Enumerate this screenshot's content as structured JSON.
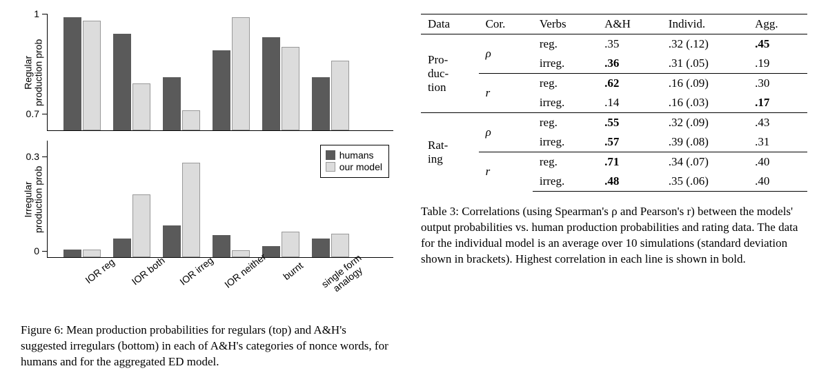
{
  "figure": {
    "top": {
      "ylabel": "Regular\nproduction prob",
      "ylim": [
        0.65,
        1.0
      ],
      "ticks": [
        0.7,
        1.0
      ],
      "bars": [
        {
          "humans": 0.99,
          "model": 0.98
        },
        {
          "humans": 0.94,
          "model": 0.79
        },
        {
          "humans": 0.81,
          "model": 0.71
        },
        {
          "humans": 0.89,
          "model": 0.99
        },
        {
          "humans": 0.93,
          "model": 0.9
        },
        {
          "humans": 0.81,
          "model": 0.86
        }
      ]
    },
    "bottom": {
      "ylabel": "Irregular\nproduction prob",
      "ylim": [
        -0.02,
        0.35
      ],
      "ticks": [
        0,
        0.3
      ],
      "bars": [
        {
          "humans": 0.005,
          "model": 0.004
        },
        {
          "humans": 0.04,
          "model": 0.18
        },
        {
          "humans": 0.08,
          "model": 0.28
        },
        {
          "humans": 0.05,
          "model": 0.003
        },
        {
          "humans": 0.015,
          "model": 0.06
        },
        {
          "humans": 0.04,
          "model": 0.055
        }
      ]
    },
    "categories": [
      "IOR reg",
      "IOR both",
      "IOR irreg",
      "IOR neither",
      "burnt",
      "single form\nanalogy"
    ],
    "legend": {
      "humans": "humans",
      "model": "our model"
    },
    "colors": {
      "humans": "#5a5a5a",
      "model": "#dcdcdc"
    },
    "caption": "Figure 6: Mean production probabilities for regulars (top) and A&H's suggested irregulars (bottom) in each of A&H's categories of nonce words, for humans and for the aggregated ED model."
  },
  "table": {
    "headers": [
      "Data",
      "Cor.",
      "Verbs",
      "A&H",
      "Individ.",
      "Agg."
    ],
    "rows": [
      {
        "data": "Pro-\nduc-\ntion",
        "cor": "ρ",
        "verbs": "reg.",
        "ah": ".35",
        "ind": ".32 (.12)",
        "agg": ".45",
        "bold": "agg"
      },
      {
        "data": "",
        "cor": "",
        "verbs": "irreg.",
        "ah": ".36",
        "ind": ".31 (.05)",
        "agg": ".19",
        "bold": "ah"
      },
      {
        "data": "",
        "cor": "r",
        "verbs": "reg.",
        "ah": ".62",
        "ind": ".16 (.09)",
        "agg": ".30",
        "bold": "ah"
      },
      {
        "data": "",
        "cor": "",
        "verbs": "irreg.",
        "ah": ".14",
        "ind": ".16 (.03)",
        "agg": ".17",
        "bold": "agg"
      },
      {
        "data": "Rat-\ning",
        "cor": "ρ",
        "verbs": "reg.",
        "ah": ".55",
        "ind": ".32 (.09)",
        "agg": ".43",
        "bold": "ah"
      },
      {
        "data": "",
        "cor": "",
        "verbs": "irreg.",
        "ah": ".57",
        "ind": ".39 (.08)",
        "agg": ".31",
        "bold": "ah"
      },
      {
        "data": "",
        "cor": "r",
        "verbs": "reg.",
        "ah": ".71",
        "ind": ".34 (.07)",
        "agg": ".40",
        "bold": "ah"
      },
      {
        "data": "",
        "cor": "",
        "verbs": "irreg.",
        "ah": ".48",
        "ind": ".35 (.06)",
        "agg": ".40",
        "bold": "ah"
      }
    ],
    "caption": "Table 3: Correlations (using Spearman's ρ and Pearson's r) between the models' output probabilities vs. human production probabilities and rating data. The data for the individual model is an average over 10 simulations (standard deviation shown in brackets). Highest correlation in each line is shown in bold."
  }
}
